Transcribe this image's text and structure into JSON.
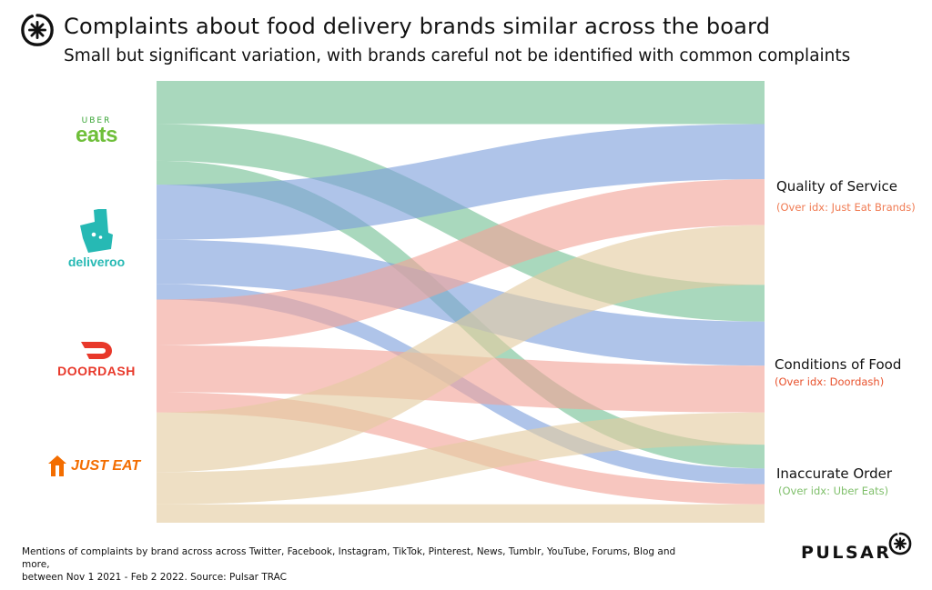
{
  "header": {
    "title": "Complaints about food delivery brands similar across the board",
    "subtitle": "Small but significant variation, with brands careful not be identified with common complaints"
  },
  "brands": {
    "uber_top": "UBER",
    "uber_main": "eats",
    "deliveroo": "deliveroo",
    "doordash": "DOORDASH",
    "justeat": "JUST EAT"
  },
  "categories": [
    {
      "label": "Quality of Service",
      "sub": "(Over idx: Just Eat Brands)",
      "sub_color": "#f07b53"
    },
    {
      "label": "Conditions of Food",
      "sub": "(Over idx: Doordash)",
      "sub_color": "#e8512c"
    },
    {
      "label": "Inaccurate Order",
      "sub": "(Over idx: Uber Eats)",
      "sub_color": "#7fbf6a"
    }
  ],
  "footer": {
    "line1": "Mentions of complaints by brand across across Twitter, Facebook, Instagram, TikTok, Pinterest, News, Tumblr, YouTube, Forums, Blog and more,",
    "line2": "between Nov 1 2021 - Feb  2 2022. Source: Pulsar TRAC"
  },
  "logo": {
    "wordmark": "PULSAR"
  },
  "colors": {
    "uber": "#74c095",
    "deliveroo": "#7e9fdc",
    "doordash": "#f2a397",
    "justeat": "#e3cc9f"
  },
  "chart_data": {
    "type": "sankey",
    "sources": [
      "Uber Eats",
      "Deliveroo",
      "Doordash",
      "Just Eat"
    ],
    "targets": [
      "Quality of Service",
      "Conditions of Food",
      "Inaccurate Order"
    ],
    "flows": [
      {
        "source": "Uber Eats",
        "target": "Quality of Service",
        "value": 47
      },
      {
        "source": "Uber Eats",
        "target": "Conditions of Food",
        "value": 40
      },
      {
        "source": "Uber Eats",
        "target": "Inaccurate Order",
        "value": 26
      },
      {
        "source": "Deliveroo",
        "target": "Quality of Service",
        "value": 60
      },
      {
        "source": "Deliveroo",
        "target": "Conditions of Food",
        "value": 48
      },
      {
        "source": "Deliveroo",
        "target": "Inaccurate Order",
        "value": 17
      },
      {
        "source": "Doordash",
        "target": "Quality of Service",
        "value": 50
      },
      {
        "source": "Doordash",
        "target": "Conditions of Food",
        "value": 51
      },
      {
        "source": "Doordash",
        "target": "Inaccurate Order",
        "value": 22
      },
      {
        "source": "Just Eat",
        "target": "Quality of Service",
        "value": 65
      },
      {
        "source": "Just Eat",
        "target": "Conditions of Food",
        "value": 35
      },
      {
        "source": "Just Eat",
        "target": "Inaccurate Order",
        "value": 20
      }
    ]
  }
}
